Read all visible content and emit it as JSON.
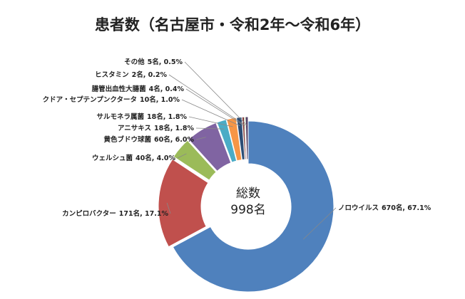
{
  "chart_data": {
    "type": "pie",
    "title": "患者数（名古屋市・令和2年～令和6年）",
    "center_text": [
      "総数",
      "998名"
    ],
    "categories": [
      "ノロウイルス",
      "カンピロバクター",
      "ウェルシュ菌",
      "黄色ブドウ球菌",
      "アニサキス",
      "サルモネラ属菌",
      "クドア・セプテンプンクタータ",
      "腸管出血性大腸菌",
      "ヒスタミン",
      "その他"
    ],
    "values": [
      670,
      171,
      40,
      60,
      18,
      18,
      10,
      4,
      2,
      5
    ],
    "value_labels": [
      "670名, 67.1%",
      "171名, 17.1%",
      "40名, 4.0%",
      "60名, 6.0%",
      "18名, 1.8%",
      "18名, 1.8%",
      "10名, 1.0%",
      "4名, 0.4%",
      "2名, 0.2%",
      "5名, 0.5%"
    ],
    "colors": [
      "#4f81bd",
      "#c0504d",
      "#9bbb59",
      "#8064a2",
      "#4bacc6",
      "#f79646",
      "#2c4d75",
      "#772c2a",
      "#5f7530",
      "#4d3b62"
    ]
  }
}
